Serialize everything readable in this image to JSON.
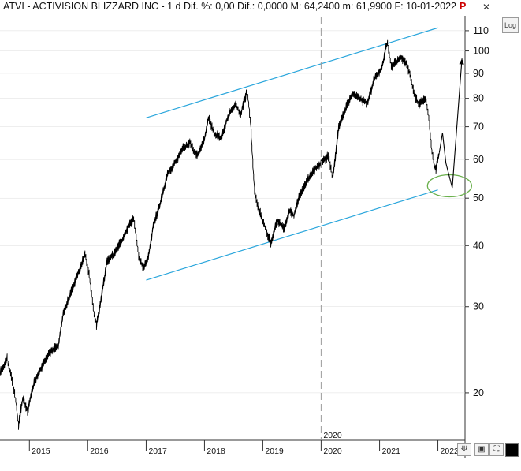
{
  "header": {
    "title": "ATVI - ACTIVISION BLIZZARD INC -  1 d Dif. %: 0,00  Dif.: 0,0000  M: 64,2400  m: 61,9900  F: 10-01-2022",
    "badge": "P",
    "close_label": "✕",
    "log_label": "Log"
  },
  "toolbar": {
    "zoom_label": "⟱",
    "save_label": "▣",
    "expand_label": "⛶"
  },
  "colors": {
    "price": "#000000",
    "channel": "#2aa6dc",
    "ellipse": "#6ab04c",
    "grid": "#dcdcdc"
  },
  "chart_data": {
    "type": "line",
    "title": "ATVI - ACTIVISION BLIZZARD INC",
    "y_scale": "log",
    "ylim": [
      16,
      118
    ],
    "xlim": [
      "2014-07-01",
      "2022-06-20"
    ],
    "y_ticks": [
      "110",
      "100",
      "90",
      "80",
      "70",
      "60",
      "50",
      "40",
      "30",
      "20"
    ],
    "y_tick_values": [
      110,
      100,
      90,
      80,
      70,
      60,
      50,
      40,
      30,
      20
    ],
    "x_ticks": [
      "2015",
      "2016",
      "2017",
      "2018",
      "2019",
      "2020",
      "2021",
      "2022"
    ],
    "x_tick_dates": [
      "2015-01-01",
      "2016-01-01",
      "2017-01-01",
      "2018-01-01",
      "2019-01-01",
      "2020-01-01",
      "2021-01-01",
      "2022-01-01"
    ],
    "marker_label": "2020",
    "marker_date": "2020-01-01",
    "series": [
      {
        "points": [
          [
            "2014-07-01",
            22.0
          ],
          [
            "2014-08-15",
            23.5
          ],
          [
            "2014-10-01",
            20.0
          ],
          [
            "2014-10-25",
            17.2
          ],
          [
            "2014-11-20",
            19.5
          ],
          [
            "2014-12-20",
            18.4
          ],
          [
            "2015-01-31",
            21.0
          ],
          [
            "2015-03-15",
            22.5
          ],
          [
            "2015-05-01",
            24.0
          ],
          [
            "2015-07-01",
            25.0
          ],
          [
            "2015-08-01",
            29.0
          ],
          [
            "2015-10-01",
            33.0
          ],
          [
            "2015-11-15",
            36.0
          ],
          [
            "2015-12-15",
            38.5
          ],
          [
            "2016-01-10",
            35.0
          ],
          [
            "2016-02-10",
            29.0
          ],
          [
            "2016-02-25",
            27.5
          ],
          [
            "2016-03-31",
            32.0
          ],
          [
            "2016-05-01",
            37.0
          ],
          [
            "2016-06-15",
            38.5
          ],
          [
            "2016-08-01",
            41.0
          ],
          [
            "2016-09-15",
            44.0
          ],
          [
            "2016-10-15",
            45.5
          ],
          [
            "2016-11-15",
            38.0
          ],
          [
            "2016-12-15",
            36.0
          ],
          [
            "2017-01-15",
            38.0
          ],
          [
            "2017-02-15",
            44.0
          ],
          [
            "2017-04-01",
            49.0
          ],
          [
            "2017-05-15",
            56.0
          ],
          [
            "2017-07-01",
            59.0
          ],
          [
            "2017-08-15",
            63.0
          ],
          [
            "2017-10-01",
            65.0
          ],
          [
            "2017-11-15",
            61.0
          ],
          [
            "2018-01-01",
            66.0
          ],
          [
            "2018-01-25",
            73.0
          ],
          [
            "2018-03-01",
            68.0
          ],
          [
            "2018-04-15",
            66.0
          ],
          [
            "2018-06-01",
            74.0
          ],
          [
            "2018-07-15",
            78.0
          ],
          [
            "2018-08-15",
            74.0
          ],
          [
            "2018-09-25",
            83.0
          ],
          [
            "2018-10-15",
            72.0
          ],
          [
            "2018-11-10",
            52.0
          ],
          [
            "2018-12-01",
            48.0
          ],
          [
            "2019-01-01",
            45.0
          ],
          [
            "2019-02-01",
            42.0
          ],
          [
            "2019-02-20",
            40.5
          ],
          [
            "2019-04-01",
            45.0
          ],
          [
            "2019-05-15",
            43.5
          ],
          [
            "2019-06-15",
            47.0
          ],
          [
            "2019-07-15",
            46.0
          ],
          [
            "2019-08-15",
            50.0
          ],
          [
            "2019-10-01",
            54.0
          ],
          [
            "2019-11-15",
            57.0
          ],
          [
            "2019-12-31",
            59.0
          ],
          [
            "2020-02-15",
            61.0
          ],
          [
            "2020-03-15",
            55.0
          ],
          [
            "2020-04-20",
            70.0
          ],
          [
            "2020-06-01",
            76.0
          ],
          [
            "2020-07-15",
            82.0
          ],
          [
            "2020-09-01",
            80.0
          ],
          [
            "2020-10-15",
            78.0
          ],
          [
            "2020-12-01",
            88.0
          ],
          [
            "2021-01-15",
            92.0
          ],
          [
            "2021-02-10",
            102.0
          ],
          [
            "2021-02-20",
            104.0
          ],
          [
            "2021-03-15",
            93.0
          ],
          [
            "2021-04-15",
            95.0
          ],
          [
            "2021-05-15",
            97.0
          ],
          [
            "2021-06-15",
            95.0
          ],
          [
            "2021-07-15",
            88.0
          ],
          [
            "2021-08-05",
            82.0
          ],
          [
            "2021-09-01",
            78.0
          ],
          [
            "2021-10-15",
            80.0
          ],
          [
            "2021-11-05",
            73.0
          ],
          [
            "2021-11-25",
            62.0
          ],
          [
            "2021-12-10",
            58.0
          ],
          [
            "2021-12-20",
            57.5
          ],
          [
            "2022-01-10",
            62.0
          ]
        ]
      }
    ],
    "projection": [
      [
        "2022-01-10",
        62.0
      ],
      [
        "2022-01-30",
        68.0
      ],
      [
        "2022-02-20",
        59.0
      ],
      [
        "2022-04-01",
        52.5
      ],
      [
        "2022-06-01",
        96.5
      ]
    ],
    "channel": {
      "upper": [
        [
          "2017-01-01",
          73.0
        ],
        [
          "2022-01-01",
          111.5
        ]
      ],
      "lower": [
        [
          "2017-01-01",
          34.0
        ],
        [
          "2022-01-01",
          52.0
        ]
      ]
    },
    "ellipse": {
      "center": [
        "2022-03-15",
        53.0
      ]
    }
  }
}
